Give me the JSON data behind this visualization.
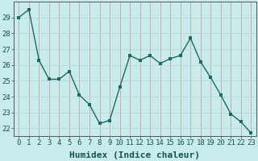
{
  "x": [
    0,
    1,
    2,
    3,
    4,
    5,
    6,
    7,
    8,
    9,
    10,
    11,
    12,
    13,
    14,
    15,
    16,
    17,
    18,
    19,
    20,
    21,
    22,
    23
  ],
  "y": [
    29.0,
    29.5,
    26.3,
    25.1,
    25.1,
    25.6,
    24.1,
    23.5,
    22.3,
    22.5,
    24.6,
    26.6,
    26.3,
    26.6,
    26.1,
    26.4,
    26.6,
    27.7,
    26.2,
    25.2,
    24.1,
    22.9,
    22.4,
    21.7
  ],
  "line_color": "#1a6b5e",
  "marker_color": "#1a6b5e",
  "bg_color": "#c8ecec",
  "vgrid_color": "#d4a0a0",
  "hgrid_color": "#b8d8d8",
  "xlabel": "Humidex (Indice chaleur)",
  "yticks": [
    22,
    23,
    24,
    25,
    26,
    27,
    28,
    29
  ],
  "xlim": [
    -0.5,
    23.5
  ],
  "ylim": [
    21.5,
    30.0
  ],
  "xlabel_fontsize": 8,
  "tick_fontsize": 6.5,
  "spine_color": "#555555"
}
